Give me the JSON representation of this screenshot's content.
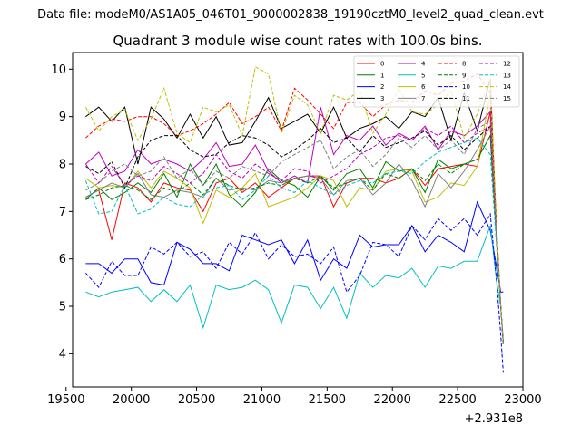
{
  "chart_data": {
    "type": "line",
    "suptitle": "Data file: modeM0/AS1A05_046T01_9000002838_19190cztM0_level2_quad_clean.evt",
    "title": "Quadrant 3 module wise count rates with 100.0s bins.",
    "xlabel": "",
    "ylabel": "",
    "x_offset_label": "+2.931e8",
    "xlim": [
      19550,
      23000
    ],
    "ylim": [
      3.3,
      10.35
    ],
    "xticks": [
      "19500",
      "20000",
      "20500",
      "21000",
      "21500",
      "22000",
      "22500",
      "23000"
    ],
    "yticks": [
      "4",
      "5",
      "6",
      "7",
      "8",
      "9",
      "10"
    ],
    "x": [
      19650,
      19750,
      19850,
      19950,
      20050,
      20150,
      20250,
      20350,
      20450,
      20550,
      20650,
      20750,
      20850,
      20950,
      21050,
      21150,
      21250,
      21350,
      21450,
      21550,
      21650,
      21750,
      21850,
      21950,
      22050,
      22150,
      22250,
      22350,
      22450,
      22550,
      22650,
      22750,
      22800,
      22830,
      22850
    ],
    "legend": {
      "location": "top-right",
      "columns": 4
    },
    "series": [
      {
        "name": "0",
        "color": "#ff0000",
        "dashed": false,
        "values": [
          7.3,
          7.45,
          6.4,
          7.6,
          7.5,
          7.2,
          7.6,
          7.5,
          7.45,
          7.0,
          7.6,
          7.7,
          7.4,
          7.6,
          7.3,
          7.5,
          7.7,
          7.75,
          7.75,
          7.1,
          7.6,
          7.7,
          7.7,
          7.6,
          7.7,
          7.9,
          7.55,
          7.9,
          7.95,
          8.0,
          7.95,
          9.1,
          6.6,
          5.0,
          4.2
        ]
      },
      {
        "name": "1",
        "color": "#008000",
        "dashed": false,
        "values": [
          7.25,
          7.5,
          7.25,
          7.4,
          7.6,
          7.4,
          7.8,
          7.3,
          8.0,
          7.55,
          8.0,
          7.35,
          7.1,
          7.4,
          7.9,
          7.65,
          7.55,
          7.3,
          7.75,
          7.45,
          7.8,
          7.9,
          7.5,
          8.05,
          7.85,
          7.9,
          7.4,
          8.1,
          7.9,
          8.0,
          8.1,
          8.6,
          6.3,
          5.0,
          4.2
        ]
      },
      {
        "name": "2",
        "color": "#0000ff",
        "dashed": false,
        "values": [
          5.9,
          5.9,
          5.7,
          6.0,
          6.0,
          5.5,
          5.45,
          6.35,
          6.2,
          5.9,
          5.9,
          5.75,
          6.5,
          6.4,
          6.3,
          6.4,
          5.9,
          6.4,
          5.55,
          6.0,
          5.8,
          6.5,
          6.25,
          6.3,
          6.3,
          6.7,
          6.15,
          6.5,
          6.35,
          6.15,
          7.2,
          6.6,
          5.8,
          5.3,
          5.3
        ]
      },
      {
        "name": "3",
        "color": "#000000",
        "dashed": false,
        "values": [
          9.0,
          9.2,
          8.9,
          9.2,
          8.0,
          9.2,
          8.95,
          8.55,
          9.05,
          8.55,
          9.0,
          8.4,
          8.45,
          8.9,
          9.4,
          8.75,
          8.9,
          9.05,
          8.65,
          9.2,
          8.55,
          8.75,
          8.85,
          9.0,
          8.75,
          9.1,
          9.0,
          9.4,
          8.5,
          9.5,
          8.7,
          9.8,
          6.4,
          5.0,
          4.2
        ]
      },
      {
        "name": "4",
        "color": "#bf00bf",
        "dashed": false,
        "values": [
          8.0,
          8.25,
          7.75,
          7.85,
          8.3,
          8.0,
          8.1,
          8.0,
          7.85,
          8.1,
          8.45,
          7.95,
          8.0,
          8.4,
          7.85,
          7.6,
          7.75,
          7.6,
          9.2,
          8.2,
          8.6,
          8.5,
          8.8,
          8.4,
          8.65,
          8.5,
          8.8,
          8.3,
          8.7,
          8.6,
          8.8,
          9.1,
          6.4,
          5.0,
          4.2
        ]
      },
      {
        "name": "5",
        "color": "#00bfbf",
        "dashed": false,
        "values": [
          5.3,
          5.2,
          5.3,
          5.35,
          5.4,
          5.1,
          5.35,
          5.1,
          5.45,
          4.55,
          5.45,
          5.35,
          5.4,
          5.55,
          5.35,
          4.65,
          5.45,
          5.4,
          4.95,
          5.4,
          4.75,
          5.7,
          5.4,
          5.65,
          5.6,
          5.8,
          5.4,
          5.85,
          5.8,
          5.95,
          5.95,
          6.7,
          5.5,
          5.0,
          4.3
        ]
      },
      {
        "name": "6",
        "color": "#bfbf00",
        "dashed": false,
        "values": [
          7.7,
          7.5,
          7.55,
          7.5,
          7.85,
          7.5,
          7.85,
          7.7,
          7.5,
          6.75,
          7.45,
          7.3,
          7.5,
          7.8,
          7.1,
          7.2,
          7.3,
          7.5,
          7.75,
          7.65,
          7.1,
          7.5,
          7.45,
          7.85,
          7.9,
          7.85,
          7.2,
          7.3,
          7.6,
          7.55,
          7.95,
          9.5,
          6.5,
          5.0,
          4.2
        ]
      },
      {
        "name": "7",
        "color": "#808080",
        "dashed": false,
        "values": [
          7.3,
          7.45,
          7.6,
          7.5,
          7.8,
          7.35,
          7.3,
          7.45,
          7.4,
          7.3,
          7.7,
          7.45,
          7.5,
          7.45,
          7.65,
          7.6,
          7.7,
          7.75,
          7.7,
          7.35,
          7.65,
          7.7,
          7.35,
          7.6,
          8.0,
          7.65,
          7.1,
          7.8,
          7.5,
          7.85,
          8.3,
          8.8,
          6.4,
          5.0,
          4.2
        ]
      },
      {
        "name": "8",
        "color": "#ff0000",
        "dashed": true,
        "values": [
          8.55,
          8.8,
          8.95,
          8.9,
          9.0,
          9.0,
          8.85,
          8.6,
          8.7,
          8.85,
          9.05,
          9.3,
          8.85,
          9.0,
          9.2,
          8.7,
          9.6,
          9.35,
          9.05,
          8.75,
          9.3,
          9.3,
          9.0,
          9.25,
          9.35,
          9.3,
          9.55,
          9.45,
          9.7,
          9.75,
          9.9,
          9.5,
          6.6,
          5.0,
          4.2
        ]
      },
      {
        "name": "9",
        "color": "#008000",
        "dashed": true,
        "values": [
          7.25,
          7.35,
          7.5,
          7.55,
          7.45,
          7.25,
          7.5,
          7.4,
          7.6,
          7.35,
          7.7,
          7.55,
          7.45,
          7.5,
          7.6,
          7.55,
          7.7,
          7.6,
          7.75,
          7.5,
          7.6,
          7.7,
          7.45,
          7.8,
          7.7,
          7.9,
          7.65,
          8.0,
          7.8,
          8.0,
          8.1,
          8.6,
          6.4,
          5.0,
          4.2
        ]
      },
      {
        "name": "10",
        "color": "#0000ff",
        "dashed": true,
        "values": [
          5.7,
          5.4,
          5.95,
          5.65,
          5.65,
          6.25,
          6.1,
          6.35,
          6.05,
          6.15,
          5.8,
          6.35,
          6.1,
          6.55,
          6.0,
          6.3,
          6.05,
          6.1,
          5.9,
          6.25,
          5.3,
          5.65,
          6.35,
          6.3,
          6.05,
          6.7,
          6.4,
          6.85,
          6.6,
          6.85,
          6.5,
          6.95,
          5.5,
          4.4,
          3.6
        ]
      },
      {
        "name": "11",
        "color": "#000000",
        "dashed": true,
        "values": [
          7.95,
          7.8,
          8.05,
          7.5,
          8.15,
          8.5,
          8.6,
          8.6,
          8.3,
          8.15,
          8.2,
          8.45,
          8.6,
          8.55,
          8.4,
          8.15,
          8.3,
          8.5,
          8.75,
          8.45,
          8.55,
          8.25,
          8.6,
          8.35,
          8.45,
          8.55,
          8.7,
          8.4,
          8.6,
          8.3,
          8.55,
          8.8,
          6.4,
          5.0,
          4.2
        ]
      },
      {
        "name": "12",
        "color": "#bf00bf",
        "dashed": true,
        "values": [
          8.0,
          7.6,
          7.95,
          7.55,
          7.75,
          7.65,
          7.95,
          7.8,
          7.6,
          7.8,
          8.2,
          7.85,
          7.7,
          8.0,
          7.8,
          7.65,
          7.9,
          7.85,
          7.6,
          7.75,
          7.9,
          8.2,
          8.35,
          8.55,
          8.6,
          8.5,
          8.75,
          8.6,
          8.8,
          8.45,
          8.65,
          8.8,
          6.4,
          5.0,
          4.2
        ]
      },
      {
        "name": "13",
        "color": "#00bfbf",
        "dashed": true,
        "values": [
          7.65,
          6.95,
          7.0,
          7.55,
          6.95,
          7.05,
          7.3,
          7.15,
          7.1,
          7.35,
          7.5,
          7.55,
          7.25,
          7.45,
          7.75,
          7.5,
          7.4,
          7.65,
          7.5,
          7.35,
          7.55,
          7.65,
          7.6,
          7.8,
          7.85,
          7.8,
          8.05,
          8.25,
          8.35,
          8.45,
          8.55,
          8.2,
          6.2,
          5.0,
          4.2
        ]
      },
      {
        "name": "14",
        "color": "#bfbf00",
        "dashed": true,
        "values": [
          9.2,
          8.7,
          9.0,
          9.15,
          8.5,
          8.95,
          9.6,
          8.65,
          8.45,
          9.2,
          9.1,
          9.25,
          8.6,
          10.05,
          9.9,
          8.65,
          9.45,
          9.25,
          8.65,
          9.45,
          9.35,
          9.55,
          8.65,
          9.05,
          9.6,
          9.1,
          9.05,
          9.25,
          9.55,
          8.55,
          9.05,
          9.8,
          6.6,
          5.0,
          4.2
        ]
      },
      {
        "name": "15",
        "color": "#808080",
        "dashed": true,
        "values": [
          7.45,
          7.6,
          7.85,
          8.0,
          7.75,
          7.85,
          8.15,
          7.7,
          7.9,
          7.55,
          7.85,
          7.7,
          7.95,
          7.85,
          7.75,
          8.05,
          8.2,
          8.35,
          8.5,
          7.9,
          8.15,
          8.3,
          7.95,
          8.2,
          8.55,
          8.35,
          8.6,
          8.3,
          8.5,
          8.2,
          8.75,
          8.9,
          6.4,
          5.0,
          4.2
        ]
      }
    ]
  }
}
